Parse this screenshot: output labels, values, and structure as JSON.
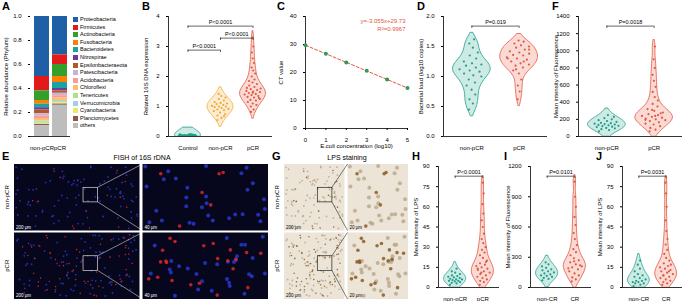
{
  "chart_data": [
    {
      "panel": "A",
      "type": "bar",
      "stacked": true,
      "ylabel": "Relative abundance (Phylum)",
      "categories": [
        "non-pCR",
        "pCR"
      ],
      "ylim": [
        0,
        1
      ],
      "yticks": [
        {
          "value": 0,
          "label": "0.0"
        },
        {
          "value": 0.2,
          "label": "0.2"
        },
        {
          "value": 0.4,
          "label": "0.4"
        },
        {
          "value": 0.6,
          "label": "0.6"
        },
        {
          "value": 0.8,
          "label": "0.8"
        },
        {
          "value": 1,
          "label": "1.0"
        }
      ],
      "legend": "right",
      "series": [
        {
          "name": "Proteobacteria",
          "color": "#1f5fa6",
          "values": [
            0.5,
            0.32
          ]
        },
        {
          "name": "Firmicutes",
          "color": "#e31a1c",
          "values": [
            0.12,
            0.08
          ]
        },
        {
          "name": "Actinobacteria",
          "color": "#33a02c",
          "values": [
            0.08,
            0.1
          ]
        },
        {
          "name": "Fusobacteria",
          "color": "#ff7f00",
          "values": [
            0.03,
            0.05
          ]
        },
        {
          "name": "Bacteroidetes",
          "color": "#1aa3a3",
          "values": [
            0.03,
            0.05
          ]
        },
        {
          "name": "Nitrospirae",
          "color": "#6a3d9a",
          "values": [
            0.02,
            0.02
          ]
        },
        {
          "name": "Epsilonbacteraeota",
          "color": "#b15928",
          "values": [
            0.03,
            0.02
          ]
        },
        {
          "name": "Patescibacteria",
          "color": "#cab2d6",
          "values": [
            0.02,
            0.02
          ]
        },
        {
          "name": "Acidobacteria",
          "color": "#fb9a99",
          "values": [
            0.02,
            0.02
          ]
        },
        {
          "name": "Chloroflexi",
          "color": "#fdbf6f",
          "values": [
            0.02,
            0.02
          ]
        },
        {
          "name": "Tenericutes",
          "color": "#b2df8a",
          "values": [
            0.01,
            0.01
          ]
        },
        {
          "name": "Verrucomicrobia",
          "color": "#a6cee3",
          "values": [
            0.01,
            0.01
          ]
        },
        {
          "name": "Cyanobacteria",
          "color": "#e8e86a",
          "values": [
            0.01,
            0.01
          ]
        },
        {
          "name": "Planctomycetes",
          "color": "#8c564b",
          "values": [
            0.01,
            0.01
          ]
        },
        {
          "name": "others",
          "color": "#bdbdbd",
          "values": [
            0.09,
            0.26
          ]
        }
      ]
    },
    {
      "panel": "B",
      "type": "violin",
      "ylabel": "Related 16S DNA expression",
      "ylim": [
        0,
        4
      ],
      "yticks": [
        0,
        1,
        2,
        3,
        4
      ],
      "groups": [
        {
          "name": "Control",
          "color": "#1b9e8a",
          "values": [
            0.02,
            0.03,
            0.04,
            0.05,
            0.03,
            0.06,
            0.04,
            0.05,
            0.02,
            0.07,
            0.03,
            0.05,
            0.04,
            0.06,
            0.08,
            0.03,
            0.05,
            0.04,
            0.02,
            0.06
          ]
        },
        {
          "name": "non-pCR",
          "color": "#f0a830",
          "values": [
            0.55,
            0.62,
            0.7,
            0.75,
            0.8,
            0.85,
            0.88,
            0.9,
            0.92,
            0.95,
            0.98,
            1.0,
            1.0,
            1.02,
            1.05,
            1.08,
            1.1,
            1.12,
            1.15,
            1.2,
            1.25,
            1.3,
            1.35,
            1.42,
            0.68
          ]
        },
        {
          "name": "pCR",
          "color": "#e4573f",
          "values": [
            0.82,
            0.9,
            1.0,
            1.05,
            1.1,
            1.15,
            1.2,
            1.22,
            1.25,
            1.3,
            1.32,
            1.35,
            1.38,
            1.4,
            1.42,
            1.45,
            1.48,
            1.5,
            1.52,
            1.55,
            1.58,
            1.6,
            1.65,
            1.7,
            1.75,
            1.8,
            1.85,
            1.9,
            2.0,
            2.1,
            2.2,
            2.3,
            2.45,
            2.6,
            2.8,
            3.0,
            3.3,
            1.28,
            1.46,
            1.62
          ]
        }
      ],
      "comparisons": [
        {
          "groups": [
            "Control",
            "non-pCR"
          ],
          "label": "P<0.0001"
        },
        {
          "groups": [
            "non-pCR",
            "pCR"
          ],
          "label": "P<0.0001"
        },
        {
          "groups": [
            "Control",
            "pCR"
          ],
          "label": "P<0.0001"
        }
      ]
    },
    {
      "panel": "C",
      "type": "scatter",
      "marker": "circle",
      "color": "#2e9a5a",
      "xlabel": "E.coli concentration (log10)",
      "ylabel": "CT value",
      "x": [
        0,
        1,
        2,
        3,
        4,
        5
      ],
      "values": [
        29.7,
        26.7,
        23.6,
        20.6,
        17.5,
        14.5
      ],
      "xlim": [
        0,
        5
      ],
      "xticks": [
        0,
        1,
        2,
        3,
        4,
        5
      ],
      "ylim": [
        0,
        40
      ],
      "yticks": [
        0,
        10,
        20,
        30,
        40
      ],
      "fit": {
        "x": [
          0,
          5
        ],
        "values": [
          29.73,
          14.455
        ],
        "color": "#e4573f",
        "line_style": "dashed"
      },
      "annotations": [
        "y=-3.055x+29.73",
        "R²=0.9967"
      ]
    },
    {
      "panel": "D",
      "type": "violin",
      "ylabel": "Bacterial load (log10 copies)",
      "ylim": [
        0,
        2
      ],
      "yticks": [
        {
          "value": 0,
          "label": "0.0"
        },
        {
          "value": 0.5,
          "label": "0.5"
        },
        {
          "value": 1,
          "label": "1.0"
        },
        {
          "value": 1.5,
          "label": "1.5"
        },
        {
          "value": 2,
          "label": "2.0"
        }
      ],
      "groups": [
        {
          "name": "non-pCR",
          "color": "#1b9e8a",
          "values": [
            0.45,
            0.55,
            0.62,
            0.7,
            0.78,
            0.85,
            0.9,
            0.95,
            1.0,
            1.02,
            1.05,
            1.08,
            1.1,
            1.12,
            1.15,
            1.18,
            1.2,
            1.22,
            1.25,
            1.3,
            1.35,
            1.4,
            1.48,
            1.55,
            1.62
          ]
        },
        {
          "name": "pCR",
          "color": "#e4573f",
          "values": [
            0.62,
            0.75,
            0.85,
            0.95,
            1.05,
            1.1,
            1.15,
            1.18,
            1.2,
            1.22,
            1.25,
            1.28,
            1.3,
            1.32,
            1.35,
            1.36,
            1.38,
            1.4,
            1.42,
            1.45,
            1.48,
            1.5,
            1.52,
            1.55,
            1.58,
            1.6,
            1.3,
            1.25,
            1.12,
            1.45
          ]
        }
      ],
      "comparisons": [
        {
          "groups": [
            "non-pCR",
            "pCR"
          ],
          "label": "P=0.019"
        }
      ]
    },
    {
      "panel": "F",
      "type": "violin",
      "ylabel": "Mean intensity of Fluorescence",
      "ylim": [
        0,
        1400
      ],
      "yticks": [
        0,
        200,
        400,
        600,
        800,
        1000,
        1200,
        1400
      ],
      "groups": [
        {
          "name": "non-pCR",
          "color": "#1b9e8a",
          "values": [
            60,
            75,
            85,
            95,
            100,
            110,
            115,
            120,
            125,
            130,
            135,
            140,
            145,
            150,
            155,
            160,
            170,
            180,
            190,
            200,
            215,
            230,
            250
          ]
        },
        {
          "name": "pCR",
          "color": "#e4573f",
          "values": [
            60,
            80,
            100,
            120,
            140,
            150,
            165,
            180,
            190,
            200,
            210,
            220,
            230,
            240,
            250,
            260,
            280,
            300,
            320,
            350,
            380,
            420,
            460,
            520,
            580,
            650,
            720,
            800,
            900,
            1050,
            240,
            195,
            270,
            310
          ]
        }
      ],
      "comparisons": [
        {
          "groups": [
            "non-pCR",
            "pCR"
          ],
          "label": "P=0.0018"
        }
      ]
    },
    {
      "panel": "H",
      "type": "violin",
      "ylabel": "Mean intensity of LPS",
      "ylim": [
        0,
        90
      ],
      "yticks": [
        0,
        15,
        30,
        45,
        60,
        75,
        90
      ],
      "groups": [
        {
          "name": "non-pCR",
          "color": "#1b9e8a",
          "values": [
            2,
            3,
            3.5,
            4,
            4.5,
            5,
            5,
            5.5,
            6,
            6,
            6.5,
            7,
            7.5,
            8,
            8.5,
            9,
            10,
            11,
            12,
            14
          ]
        },
        {
          "name": "pCR",
          "color": "#e4573f",
          "values": [
            2,
            4,
            5,
            6,
            7,
            8,
            9,
            10,
            11,
            12,
            13,
            14,
            15,
            16,
            17,
            18,
            20,
            22,
            24,
            26,
            28,
            30,
            33,
            36,
            40,
            45,
            50,
            55,
            62,
            70,
            78,
            14,
            19,
            11
          ]
        }
      ],
      "comparisons": [
        {
          "groups": [
            "non-pCR",
            "pCR"
          ],
          "label": "P<0.0001"
        }
      ]
    },
    {
      "panel": "I",
      "type": "violin",
      "ylabel": "Mean intensity of Fluorescence",
      "ylim": [
        0,
        1200
      ],
      "yticks": [
        0,
        300,
        600,
        900,
        1200
      ],
      "groups": [
        {
          "name": "non-CR",
          "color": "#1b9e8a",
          "values": [
            70,
            85,
            95,
            105,
            115,
            120,
            130,
            140,
            150,
            160,
            170,
            180,
            195,
            210,
            230,
            250
          ]
        },
        {
          "name": "CR",
          "color": "#e4573f",
          "values": [
            60,
            80,
            100,
            120,
            140,
            160,
            180,
            200,
            210,
            230,
            250,
            270,
            290,
            320,
            350,
            380,
            420,
            480,
            540,
            620,
            700,
            800,
            900,
            1050,
            220,
            260,
            190
          ]
        }
      ],
      "comparisons": [
        {
          "groups": [
            "non-CR",
            "CR"
          ],
          "label": "P=0.0101"
        }
      ]
    },
    {
      "panel": "J",
      "type": "violin",
      "ylabel": "Mean intensity of LPS",
      "ylim": [
        0,
        90
      ],
      "yticks": [
        0,
        15,
        30,
        45,
        60,
        75,
        90
      ],
      "groups": [
        {
          "name": "non-CR",
          "color": "#1b9e8a",
          "values": [
            1,
            2,
            3,
            3,
            4,
            4,
            5,
            5,
            6,
            7,
            8,
            9,
            10,
            12,
            14,
            17,
            20
          ]
        },
        {
          "name": "CR",
          "color": "#e4573f",
          "values": [
            2,
            3,
            4,
            5,
            6,
            7,
            8,
            9,
            10,
            11,
            12,
            13,
            14,
            15,
            16,
            18,
            20,
            22,
            25,
            28,
            32,
            36,
            42,
            50,
            60,
            70,
            78,
            12,
            9,
            17
          ]
        }
      ],
      "comparisons": [
        {
          "groups": [
            "non-CR",
            "CR"
          ],
          "label": "P=0.0031"
        }
      ]
    }
  ],
  "figures": [
    {
      "panel": "E",
      "type": "fluorescence image",
      "title": "FISH of 16S rDNA",
      "rows": [
        "non-pCR",
        "pCR"
      ],
      "scale_bars": [
        "200 μm",
        "40 μm"
      ]
    },
    {
      "panel": "G",
      "type": "stained image",
      "title": "LPS staining",
      "rows": [
        "non-pCR",
        "pCR"
      ],
      "scale_bars": [
        "200 μm",
        "20 μm"
      ]
    }
  ]
}
